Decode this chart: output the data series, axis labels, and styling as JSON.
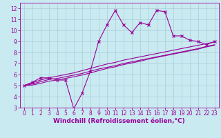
{
  "xlabel": "Windchill (Refroidissement éolien,°C)",
  "background_color": "#c8eaf0",
  "line_color": "#990099",
  "xlim": [
    -0.5,
    23.5
  ],
  "ylim": [
    3,
    12.5
  ],
  "xticks": [
    0,
    1,
    2,
    3,
    4,
    5,
    6,
    7,
    8,
    9,
    10,
    11,
    12,
    13,
    14,
    15,
    16,
    17,
    18,
    19,
    20,
    21,
    22,
    23
  ],
  "yticks": [
    3,
    4,
    5,
    6,
    7,
    8,
    9,
    10,
    11,
    12
  ],
  "series1_x": [
    0,
    1,
    2,
    3,
    4,
    5,
    6,
    7,
    8,
    9,
    10,
    11,
    12,
    13,
    14,
    15,
    16,
    17,
    18,
    19,
    20,
    21,
    22,
    23
  ],
  "series1_y": [
    5.0,
    5.3,
    5.7,
    5.7,
    5.5,
    5.5,
    2.9,
    4.3,
    6.3,
    9.0,
    10.5,
    11.8,
    10.5,
    9.8,
    10.7,
    10.5,
    11.8,
    11.7,
    9.5,
    9.5,
    9.1,
    9.0,
    8.7,
    9.0
  ],
  "series2_x": [
    0,
    1,
    2,
    3,
    4,
    5,
    6,
    7,
    8,
    9,
    10,
    11,
    12,
    13,
    14,
    15,
    16,
    17,
    18,
    19,
    20,
    21,
    22,
    23
  ],
  "series2_y": [
    5.0,
    5.25,
    5.5,
    5.7,
    5.85,
    6.0,
    6.15,
    6.35,
    6.55,
    6.75,
    6.95,
    7.1,
    7.3,
    7.45,
    7.6,
    7.75,
    7.9,
    8.05,
    8.2,
    8.35,
    8.5,
    8.65,
    8.8,
    8.95
  ],
  "series3_x": [
    0,
    1,
    2,
    3,
    4,
    5,
    6,
    7,
    8,
    9,
    10,
    11,
    12,
    13,
    14,
    15,
    16,
    17,
    18,
    19,
    20,
    21,
    22,
    23
  ],
  "series3_y": [
    5.0,
    5.15,
    5.35,
    5.55,
    5.65,
    5.8,
    5.95,
    6.1,
    6.3,
    6.5,
    6.65,
    6.8,
    7.0,
    7.15,
    7.3,
    7.45,
    7.6,
    7.75,
    7.9,
    8.05,
    8.2,
    8.35,
    8.55,
    8.7
  ],
  "series4_x": [
    0,
    1,
    2,
    3,
    4,
    5,
    6,
    7,
    8,
    9,
    10,
    11,
    12,
    13,
    14,
    15,
    16,
    17,
    18,
    19,
    20,
    21,
    22,
    23
  ],
  "series4_y": [
    5.0,
    5.05,
    5.2,
    5.4,
    5.5,
    5.65,
    5.8,
    5.95,
    6.15,
    6.35,
    6.55,
    6.7,
    6.9,
    7.05,
    7.2,
    7.4,
    7.55,
    7.7,
    7.85,
    8.0,
    8.15,
    8.3,
    8.5,
    8.65
  ],
  "grid_color": "#aaccd8",
  "xlabel_fontsize": 6.5,
  "tick_fontsize": 5.5,
  "marker": "x",
  "marker_size": 3,
  "lw": 0.8
}
